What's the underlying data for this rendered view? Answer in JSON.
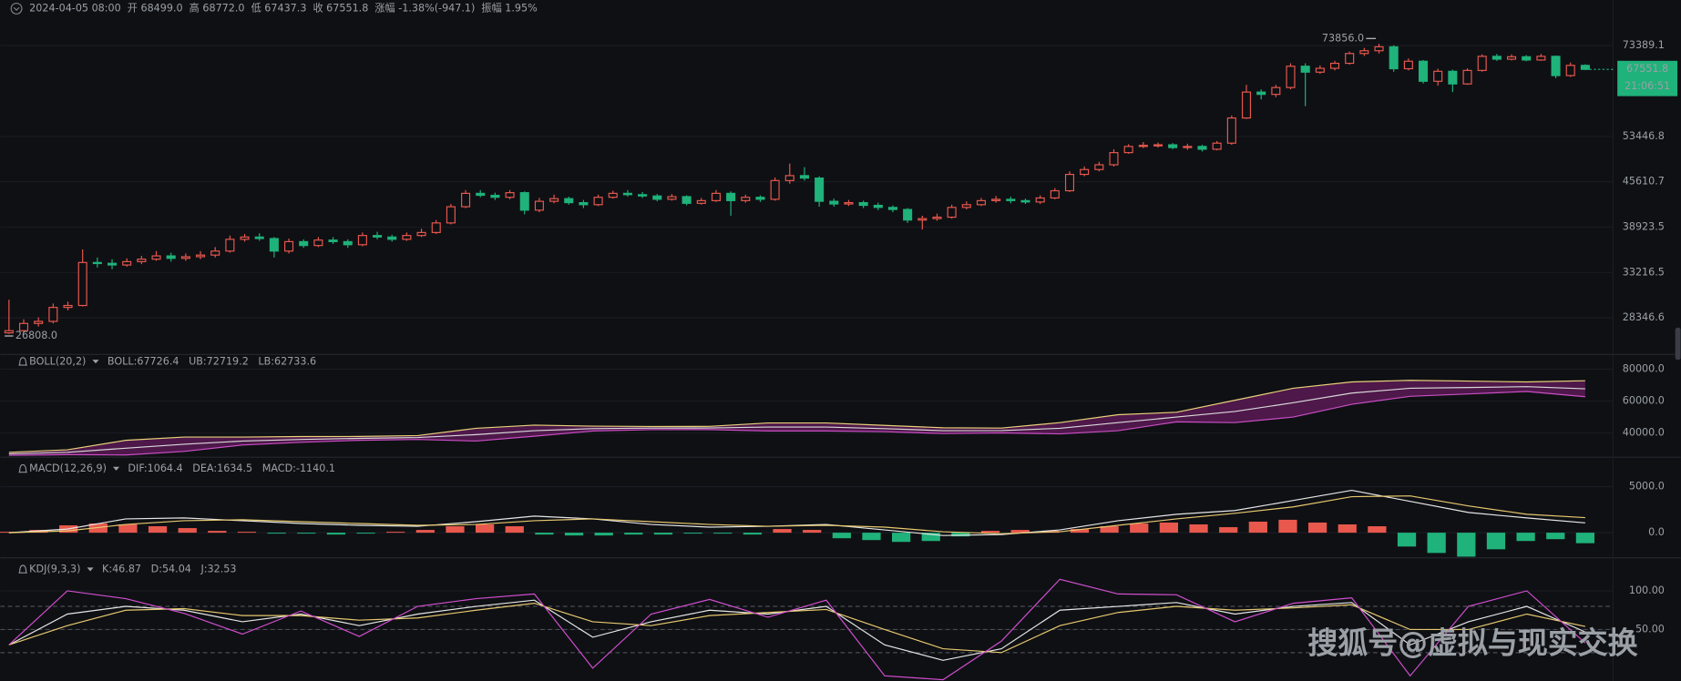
{
  "chart_data": [
    {
      "type": "candlestick",
      "info": {
        "date": "2024-04-05 08:00",
        "items": [
          {
            "label": "开",
            "text": "68499.0"
          },
          {
            "label": "高",
            "text": "68772.0"
          },
          {
            "label": "低",
            "text": "67437.3"
          },
          {
            "label": "收",
            "text": "67551.8"
          },
          {
            "label": "涨幅",
            "text": "-1.38%(-947.1)"
          },
          {
            "label": "振幅",
            "text": "1.95%"
          }
        ]
      },
      "open": [
        26900,
        27100,
        27800,
        28000,
        29400,
        29600,
        34400,
        34300,
        34100,
        34500,
        34800,
        35200,
        34900,
        35100,
        35300,
        35800,
        37300,
        37600,
        37400,
        35800,
        37000,
        36500,
        37200,
        37000,
        36600,
        37800,
        37600,
        37300,
        37800,
        38200,
        39500,
        41800,
        43800,
        43500,
        43200,
        43900,
        41300,
        42600,
        43000,
        42400,
        42100,
        43200,
        43800,
        43600,
        43400,
        42900,
        43300,
        42300,
        42700,
        43800,
        42700,
        43200,
        42900,
        45800,
        46600,
        46200,
        42600,
        42200,
        42400,
        42000,
        41700,
        41400,
        39900,
        40100,
        40300,
        41700,
        42100,
        42700,
        42900,
        42700,
        42500,
        43100,
        44200,
        46800,
        47600,
        48400,
        50500,
        51600,
        51800,
        51900,
        51400,
        51600,
        51100,
        52200,
        57000,
        62400,
        61900,
        63400,
        68300,
        66900,
        67800,
        69000,
        71400,
        72100,
        73100,
        67700,
        69500,
        64800,
        67100,
        64200,
        67300,
        70700,
        70000,
        70600,
        69800,
        70700,
        66100,
        68499
      ],
      "high": [
        30200,
        28200,
        28400,
        29800,
        30000,
        36000,
        35000,
        34800,
        34900,
        35200,
        35800,
        35600,
        35500,
        35800,
        36300,
        37800,
        38000,
        38100,
        37600,
        37400,
        37300,
        37600,
        37600,
        37300,
        38200,
        38300,
        37900,
        38200,
        38700,
        39900,
        42200,
        44300,
        44300,
        43900,
        44300,
        44100,
        43100,
        43600,
        43300,
        42800,
        43600,
        44200,
        44300,
        44000,
        43700,
        43700,
        43500,
        43100,
        44300,
        44100,
        43600,
        43500,
        46300,
        48600,
        48000,
        46500,
        43000,
        42800,
        42700,
        42400,
        42000,
        41600,
        40500,
        40800,
        42100,
        42600,
        43100,
        43400,
        43300,
        43000,
        43500,
        44600,
        47300,
        48100,
        48900,
        51100,
        52000,
        52400,
        52300,
        52200,
        52100,
        51900,
        52600,
        57500,
        64000,
        63000,
        64000,
        69000,
        69000,
        68500,
        69600,
        71900,
        72800,
        73856,
        73500,
        70200,
        69800,
        67700,
        67500,
        67800,
        71200,
        71300,
        71200,
        71000,
        71300,
        70900,
        69200,
        68772
      ],
      "low": [
        26808,
        26900,
        27500,
        27800,
        29100,
        29500,
        33800,
        33600,
        33900,
        34200,
        34600,
        34500,
        34600,
        34800,
        35000,
        35600,
        37000,
        37100,
        35000,
        35500,
        36200,
        36300,
        36700,
        36200,
        36400,
        37300,
        37000,
        37100,
        37600,
        38000,
        39300,
        41600,
        43200,
        42800,
        42900,
        40700,
        41000,
        42300,
        42100,
        41600,
        41900,
        43000,
        43300,
        43100,
        42600,
        42700,
        42000,
        42100,
        42500,
        40500,
        42400,
        42500,
        42700,
        45300,
        45800,
        41800,
        41800,
        41900,
        41600,
        41300,
        41000,
        39500,
        38600,
        39800,
        40100,
        41400,
        41900,
        42400,
        42300,
        42200,
        42200,
        42900,
        44000,
        46500,
        47300,
        48100,
        50300,
        51300,
        51400,
        51100,
        51000,
        50700,
        50900,
        51900,
        56800,
        60800,
        61300,
        63000,
        59400,
        66500,
        67300,
        68700,
        70800,
        71400,
        67000,
        67300,
        64300,
        63800,
        62400,
        64000,
        67000,
        69600,
        69700,
        69500,
        69600,
        65500,
        65800,
        67437.3
      ],
      "close": [
        27100,
        27800,
        28000,
        29400,
        29600,
        34400,
        34300,
        34100,
        34500,
        34800,
        35200,
        34900,
        35100,
        35300,
        35800,
        37300,
        37600,
        37400,
        35800,
        37000,
        36500,
        37200,
        37000,
        36600,
        37800,
        37600,
        37300,
        37800,
        38200,
        39500,
        41800,
        43800,
        43500,
        43200,
        43900,
        41300,
        42600,
        43000,
        42400,
        42100,
        43200,
        43800,
        43600,
        43400,
        42900,
        43300,
        42300,
        42700,
        43800,
        42700,
        43200,
        42900,
        45800,
        46600,
        46200,
        42600,
        42200,
        42400,
        42000,
        41700,
        41400,
        39900,
        40100,
        40300,
        41700,
        42100,
        42700,
        42900,
        42700,
        42500,
        43100,
        44200,
        46800,
        47600,
        48400,
        50500,
        51600,
        51800,
        51900,
        51400,
        51600,
        51100,
        52200,
        57000,
        62400,
        61900,
        63400,
        68300,
        66900,
        67800,
        69000,
        71400,
        72100,
        73100,
        67700,
        69500,
        64800,
        67100,
        64200,
        67300,
        70700,
        70000,
        70600,
        69800,
        70700,
        66100,
        68500,
        67551.8
      ],
      "up_color": "#e8584d",
      "down_color": "#1fb27a",
      "log_scale": true,
      "grid": true,
      "ylim": [
        25040,
        86085
      ],
      "yticks": [
        73389.1,
        53446.8,
        45610.7,
        38923.5,
        33216.5,
        28346.6
      ],
      "annotations": [
        {
          "value": 73856,
          "label": "73856.0"
        },
        {
          "value": 26808,
          "label": "26808.0"
        }
      ],
      "countdown": "21:06:51"
    },
    {
      "type": "band",
      "title": "BOLL(20,2)",
      "fill": "#5e1a58",
      "series": [
        {
          "name": "BOLL:67726.4",
          "color": "#d8d8d8",
          "values": [
            27000,
            28000,
            30500,
            33000,
            35000,
            36000,
            36700,
            37200,
            39000,
            41500,
            42800,
            43100,
            43200,
            43800,
            43800,
            42800,
            41500,
            41600,
            43000,
            46500,
            50000,
            53500,
            59000,
            65000,
            68000,
            68500,
            69000,
            67726.4
          ]
        },
        {
          "name": "UB:72719.2",
          "color": "#e8d27a",
          "values": [
            28000,
            29500,
            35500,
            37500,
            37500,
            37800,
            37900,
            38400,
            43000,
            45000,
            44300,
            44100,
            44200,
            46300,
            46300,
            44800,
            43300,
            43100,
            46500,
            51500,
            53000,
            60500,
            68000,
            72000,
            73000,
            72500,
            72000,
            72719.2
          ]
        },
        {
          "name": "LB:62733.6",
          "color": "#c94fc4",
          "values": [
            26000,
            26500,
            26300,
            28500,
            32500,
            34200,
            35500,
            36000,
            35000,
            38000,
            41300,
            42100,
            42200,
            41300,
            41300,
            40800,
            39700,
            40100,
            39500,
            41500,
            47000,
            46500,
            50000,
            58000,
            63000,
            64500,
            66000,
            62733.6
          ]
        }
      ],
      "ylim": [
        26230,
        88525
      ],
      "yticks": [
        {
          "value": 80000,
          "label": "80000.0"
        },
        {
          "value": 60000,
          "label": "60000.0"
        },
        {
          "value": 40000,
          "label": "40000.0"
        }
      ]
    },
    {
      "type": "macd",
      "title": "MACD(12,26,9)",
      "series": [
        {
          "name": "DIF:1064.4",
          "color": "#e6e6e6",
          "values": [
            0,
            400,
            1500,
            1600,
            1300,
            1000,
            800,
            700,
            1200,
            1800,
            1500,
            900,
            600,
            700,
            900,
            300,
            -300,
            -200,
            300,
            1300,
            2000,
            2400,
            3500,
            4600,
            3400,
            2200,
            1600,
            1064.4
          ]
        },
        {
          "name": "DEA:1634.5",
          "color": "#e6c86e",
          "values": [
            0,
            200,
            900,
            1300,
            1400,
            1200,
            1000,
            800,
            900,
            1300,
            1500,
            1200,
            900,
            700,
            800,
            600,
            100,
            -100,
            100,
            800,
            1500,
            2100,
            2800,
            3900,
            4000,
            2900,
            2000,
            1634.5
          ]
        },
        {
          "name": "MACD:-1140.1",
          "color": "#1fb27a",
          "up_color": "#e8584d",
          "histogram": true,
          "values": [
            100,
            300,
            800,
            1000,
            900,
            700,
            500,
            200,
            100,
            -100,
            -100,
            -200,
            -100,
            100,
            300,
            700,
            900,
            700,
            -200,
            -300,
            -300,
            -200,
            -200,
            -100,
            -100,
            -200,
            400,
            300,
            -600,
            -800,
            -1000,
            -900,
            -400,
            200,
            300,
            200,
            400,
            700,
            1000,
            1100,
            900,
            600,
            1200,
            1400,
            1100,
            900,
            700,
            -1500,
            -2200,
            -2600,
            -1800,
            -900,
            -700,
            -1140.1
          ]
        }
      ],
      "ylim": [
        -2614,
        7841
      ],
      "yticks": [
        {
          "value": 5000,
          "label": "5000.0"
        },
        {
          "value": 0,
          "label": "0.0"
        }
      ]
    },
    {
      "type": "line",
      "title": "KDJ(9,3,3)",
      "series": [
        {
          "name": "K:46.87",
          "color": "#e6e6e6",
          "values": [
            30,
            70,
            80,
            75,
            60,
            70,
            55,
            70,
            80,
            88,
            40,
            60,
            75,
            70,
            80,
            30,
            10,
            25,
            75,
            80,
            85,
            70,
            80,
            85,
            30,
            60,
            80,
            46.87
          ]
        },
        {
          "name": "D:54.04",
          "color": "#e6c86e",
          "values": [
            30,
            55,
            75,
            77,
            68,
            68,
            62,
            65,
            75,
            84,
            60,
            55,
            68,
            72,
            76,
            50,
            25,
            20,
            55,
            72,
            80,
            75,
            78,
            82,
            50,
            50,
            70,
            54.04
          ]
        },
        {
          "name": "J:32.53",
          "color": "#d14fd0",
          "values": [
            30,
            100,
            90,
            71,
            44,
            74,
            41,
            80,
            90,
            96,
            0,
            70,
            89,
            66,
            88,
            -10,
            -15,
            35,
            115,
            96,
            95,
            60,
            84,
            91,
            -10,
            80,
            100,
            32.53
          ]
        }
      ],
      "ref_lines": [
        80,
        50,
        20
      ],
      "ylim": [
        -16.7,
        140
      ],
      "yticks": [
        {
          "value": 100,
          "label": "100.00"
        },
        {
          "value": 50,
          "label": "50.00"
        }
      ]
    }
  ],
  "watermark": "搜狐号@虚拟与现实交换"
}
